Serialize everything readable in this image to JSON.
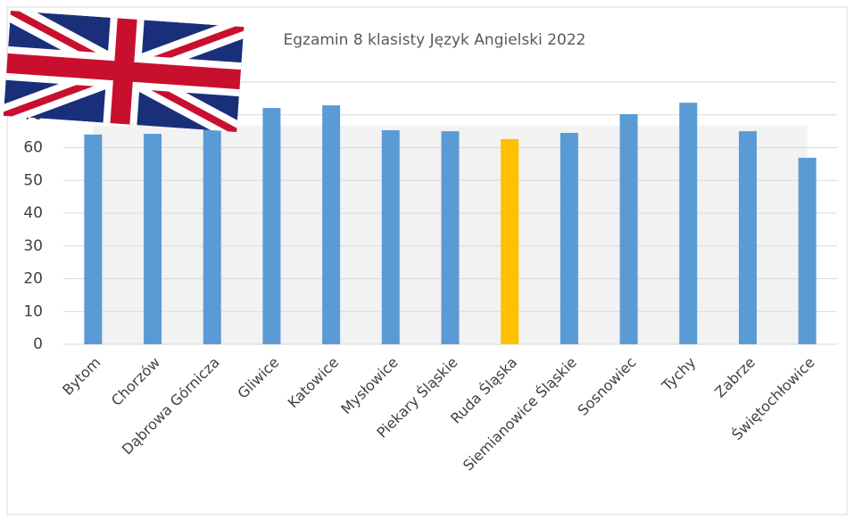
{
  "chart_data": {
    "type": "bar",
    "title": "Egzamin 8 klasisty Język Angielski 2022",
    "categories": [
      "Bytom",
      "Chorzów",
      "Dąbrowa Górnicza",
      "Gliwice",
      "Katowice",
      "Mysłowice",
      "Piekary Śląskie",
      "Ruda Śląska",
      "Siemianowice Śląskie",
      "Sosnowiec",
      "Tychy",
      "Zabrze",
      "Świętochłowice"
    ],
    "series": [
      {
        "type": "bar",
        "colors": [
          "#5b9bd5",
          "#5b9bd5",
          "#5b9bd5",
          "#5b9bd5",
          "#5b9bd5",
          "#5b9bd5",
          "#5b9bd5",
          "#ffc000",
          "#5b9bd5",
          "#5b9bd5",
          "#5b9bd5",
          "#5b9bd5",
          "#5b9bd5"
        ],
        "values": [
          64,
          64.2,
          70,
          72.1,
          72.9,
          65.3,
          65,
          62.6,
          64.5,
          70.2,
          73.7,
          65,
          56.9
        ]
      },
      {
        "type": "area",
        "color": "#f2f2f2",
        "values": [
          66.7,
          66.7,
          66.7,
          66.7,
          66.7,
          66.7,
          66.7,
          66.7,
          66.7,
          66.7,
          66.7,
          66.7,
          66.7
        ]
      }
    ],
    "ylim": [
      0,
      80
    ],
    "yticks": [
      0,
      10,
      20,
      30,
      40,
      50,
      60,
      70,
      80
    ],
    "grid": true
  }
}
